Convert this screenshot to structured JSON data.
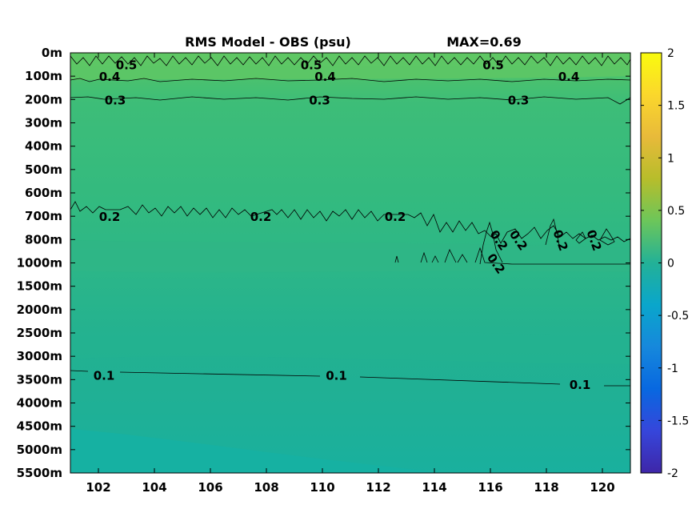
{
  "chart_data": {
    "type": "heatmap",
    "title": "RMS Model - OBS (psu)",
    "subtitle": "MAX=0.69",
    "x_ticks": [
      102,
      104,
      106,
      108,
      110,
      112,
      114,
      116,
      118,
      120
    ],
    "xlim": [
      101,
      121
    ],
    "y_ticks": [
      "0m",
      "100m",
      "200m",
      "300m",
      "400m",
      "500m",
      "600m",
      "700m",
      "800m",
      "1000m",
      "1500m",
      "2000m",
      "2500m",
      "3000m",
      "3500m",
      "4000m",
      "4500m",
      "5000m",
      "5500m"
    ],
    "colorbar": {
      "ticks": [
        2,
        1.5,
        1,
        0.5,
        0,
        -0.5,
        -1,
        -1.5,
        -2
      ],
      "range": [
        -2,
        2
      ],
      "colormap": "parula"
    },
    "contour_levels": [
      0.5,
      0.4,
      0.3,
      0.2,
      0.1
    ],
    "contour_labels": [
      {
        "text": "0.5",
        "x": 103.0,
        "depth": "50m"
      },
      {
        "text": "0.5",
        "x": 109.6,
        "depth": "50m"
      },
      {
        "text": "0.5",
        "x": 116.1,
        "depth": "50m"
      },
      {
        "text": "0.4",
        "x": 102.4,
        "depth": "100m"
      },
      {
        "text": "0.4",
        "x": 110.1,
        "depth": "100m"
      },
      {
        "text": "0.4",
        "x": 118.8,
        "depth": "100m"
      },
      {
        "text": "0.3",
        "x": 102.6,
        "depth": "200m"
      },
      {
        "text": "0.3",
        "x": 109.9,
        "depth": "200m"
      },
      {
        "text": "0.3",
        "x": 117.0,
        "depth": "200m"
      },
      {
        "text": "0.2",
        "x": 102.4,
        "depth": "700m"
      },
      {
        "text": "0.2",
        "x": 107.8,
        "depth": "700m"
      },
      {
        "text": "0.2",
        "x": 112.6,
        "depth": "700m"
      },
      {
        "text": "0.2",
        "x": 116.3,
        "depth": "800m"
      },
      {
        "text": "0.2",
        "x": 117.0,
        "depth": "800m"
      },
      {
        "text": "0.2",
        "x": 118.5,
        "depth": "800m"
      },
      {
        "text": "0.2",
        "x": 119.7,
        "depth": "800m"
      },
      {
        "text": "0.2",
        "x": 116.2,
        "depth": "1000m"
      },
      {
        "text": "0.1",
        "x": 102.2,
        "depth": "3400m"
      },
      {
        "text": "0.1",
        "x": 110.5,
        "depth": "3400m"
      },
      {
        "text": "0.1",
        "x": 119.2,
        "depth": "3600m"
      }
    ],
    "colors": {
      "surface": "#5dc663",
      "upper": "#3fbc73",
      "middle": "#2db783",
      "deep": "#21a98f",
      "bottom": "#16b3a6"
    }
  }
}
